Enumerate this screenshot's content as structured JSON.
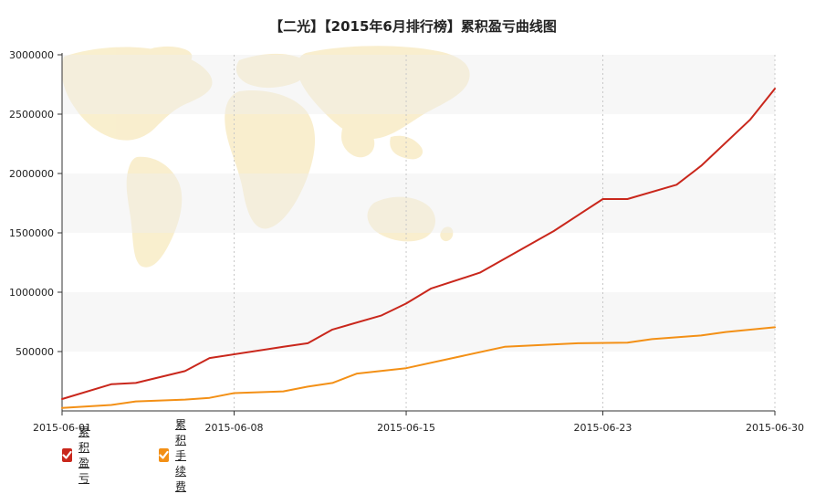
{
  "chart_data": {
    "type": "line",
    "title": "【二光】【2015年6月排行榜】累积盈亏曲线图",
    "x": [
      "2015-06-01",
      "2015-06-02",
      "2015-06-03",
      "2015-06-04",
      "2015-06-05",
      "2015-06-06",
      "2015-06-07",
      "2015-06-08",
      "2015-06-09",
      "2015-06-10",
      "2015-06-11",
      "2015-06-12",
      "2015-06-13",
      "2015-06-14",
      "2015-06-15",
      "2015-06-16",
      "2015-06-17",
      "2015-06-18",
      "2015-06-19",
      "2015-06-20",
      "2015-06-21",
      "2015-06-22",
      "2015-06-23",
      "2015-06-24",
      "2015-06-25",
      "2015-06-26",
      "2015-06-27",
      "2015-06-28",
      "2015-06-29",
      "2015-06-30"
    ],
    "x_ticks": [
      "2015-06-01",
      "2015-06-08",
      "2015-06-15",
      "2015-06-23",
      "2015-06-30"
    ],
    "y_ticks": [
      500000,
      1000000,
      1500000,
      2000000,
      2500000,
      3000000
    ],
    "ylim": [
      0,
      3000000
    ],
    "series": [
      {
        "name": "累积盈亏",
        "color": "#c9271c",
        "points": [
          [
            "2015-06-01",
            100000
          ],
          [
            "2015-06-03",
            225000
          ],
          [
            "2015-06-04",
            235000
          ],
          [
            "2015-06-06",
            335000
          ],
          [
            "2015-06-07",
            445000
          ],
          [
            "2015-06-10",
            540000
          ],
          [
            "2015-06-11",
            570000
          ],
          [
            "2015-06-12",
            685000
          ],
          [
            "2015-06-14",
            805000
          ],
          [
            "2015-06-15",
            905000
          ],
          [
            "2015-06-16",
            1030000
          ],
          [
            "2015-06-18",
            1165000
          ],
          [
            "2015-06-21",
            1515000
          ],
          [
            "2015-06-23",
            1785000
          ],
          [
            "2015-06-24",
            1785000
          ],
          [
            "2015-06-26",
            1905000
          ],
          [
            "2015-06-27",
            2065000
          ],
          [
            "2015-06-29",
            2455000
          ],
          [
            "2015-06-30",
            2715000
          ]
        ]
      },
      {
        "name": "累积手续费",
        "color": "#f39016",
        "points": [
          [
            "2015-06-01",
            25000
          ],
          [
            "2015-06-03",
            50000
          ],
          [
            "2015-06-04",
            80000
          ],
          [
            "2015-06-06",
            95000
          ],
          [
            "2015-06-07",
            110000
          ],
          [
            "2015-06-08",
            150000
          ],
          [
            "2015-06-10",
            165000
          ],
          [
            "2015-06-11",
            205000
          ],
          [
            "2015-06-12",
            235000
          ],
          [
            "2015-06-13",
            315000
          ],
          [
            "2015-06-15",
            360000
          ],
          [
            "2015-06-17",
            450000
          ],
          [
            "2015-06-19",
            540000
          ],
          [
            "2015-06-22",
            570000
          ],
          [
            "2015-06-24",
            575000
          ],
          [
            "2015-06-25",
            605000
          ],
          [
            "2015-06-27",
            635000
          ],
          [
            "2015-06-28",
            665000
          ],
          [
            "2015-06-30",
            705000
          ]
        ]
      }
    ],
    "legend_position": "bottom-left",
    "grid": true
  },
  "legend": {
    "items": [
      {
        "label": "累积盈亏",
        "color": "#c9271c"
      },
      {
        "label": "累积手续费",
        "color": "#f39016"
      }
    ]
  }
}
